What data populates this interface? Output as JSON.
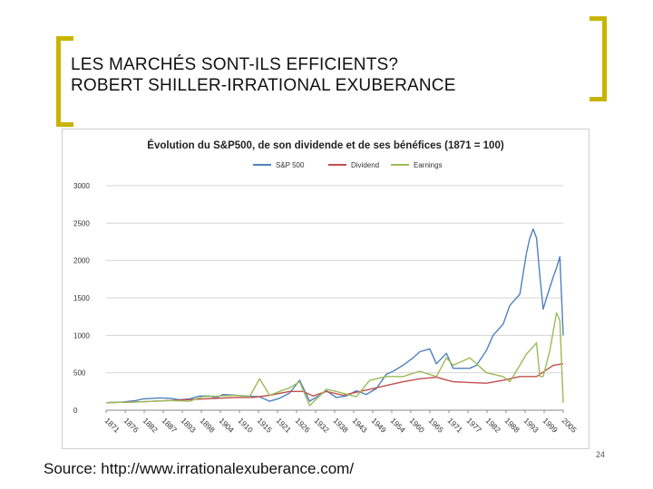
{
  "slide": {
    "title_line1": "LES MARCHÉS SONT-ILS EFFICIENTS?",
    "title_line2": "ROBERT SHILLER-IRRATIONAL EXUBERANCE",
    "source": "Source: http://www.irrationalexuberance.com/",
    "page_number": "24"
  },
  "colors": {
    "accent_bracket": "#c8b400",
    "sp500": "#4f81bd",
    "dividend": "#c0504d",
    "earnings": "#9bbb59"
  },
  "chart_data": {
    "type": "line",
    "title": "Évolution du S&P500, de son dividende et de ses bénéfices (1871 = 100)",
    "xlabel": "",
    "ylabel": "",
    "x_range": [
      1871,
      2008
    ],
    "ylim": [
      0,
      3000
    ],
    "yticks": [
      0,
      500,
      1000,
      1500,
      2000,
      2500,
      3000
    ],
    "ytick_labels": [
      "0",
      "500",
      "1000",
      "1500",
      "2000",
      "2500",
      "3000"
    ],
    "xtick_labels": [
      "1871",
      "1876",
      "1882",
      "1887",
      "1893",
      "1898",
      "1904",
      "1910",
      "1915",
      "1921",
      "1926",
      "1932",
      "1938",
      "1943",
      "1949",
      "1954",
      "1960",
      "1965",
      "1971",
      "1977",
      "1982",
      "1988",
      "1993",
      "1999",
      "2005"
    ],
    "grid": true,
    "legend": "top-center",
    "series": [
      {
        "name": "S&P 500",
        "color": "#4f81bd",
        "x": [
          1871,
          1876,
          1880,
          1882,
          1887,
          1890,
          1893,
          1896,
          1899,
          1902,
          1904,
          1906,
          1910,
          1913,
          1917,
          1920,
          1923,
          1926,
          1929,
          1932,
          1935,
          1937,
          1940,
          1943,
          1946,
          1949,
          1952,
          1955,
          1957,
          1960,
          1963,
          1965,
          1968,
          1970,
          1973,
          1975,
          1978,
          1980,
          1982,
          1985,
          1987,
          1990,
          1992,
          1995,
          1997,
          1998,
          1999,
          2000,
          2001,
          2002,
          2003,
          2005,
          2006,
          2007,
          2008
        ],
        "y": [
          100,
          110,
          130,
          150,
          165,
          160,
          140,
          150,
          190,
          190,
          165,
          210,
          200,
          190,
          180,
          120,
          160,
          230,
          400,
          120,
          200,
          260,
          170,
          190,
          260,
          210,
          290,
          480,
          520,
          600,
          700,
          780,
          820,
          620,
          760,
          560,
          560,
          560,
          600,
          800,
          1000,
          1150,
          1400,
          1550,
          2100,
          2300,
          2420,
          2300,
          1800,
          1350,
          1500,
          1780,
          1900,
          2050,
          1000
        ]
      },
      {
        "name": "Dividend",
        "color": "#c0504d",
        "x": [
          1871,
          1880,
          1890,
          1900,
          1910,
          1915,
          1920,
          1926,
          1930,
          1933,
          1937,
          1942,
          1946,
          1950,
          1955,
          1960,
          1965,
          1970,
          1975,
          1980,
          1985,
          1990,
          1995,
          2000,
          2005,
          2008
        ],
        "y": [
          100,
          110,
          130,
          150,
          170,
          170,
          200,
          250,
          250,
          190,
          250,
          200,
          240,
          280,
          330,
          380,
          420,
          440,
          380,
          370,
          360,
          400,
          450,
          450,
          600,
          620
        ]
      },
      {
        "name": "Earnings",
        "color": "#9bbb59",
        "x": [
          1871,
          1880,
          1890,
          1896,
          1900,
          1905,
          1910,
          1914,
          1917,
          1920,
          1923,
          1926,
          1929,
          1932,
          1937,
          1940,
          1946,
          1950,
          1955,
          1960,
          1965,
          1970,
          1973,
          1975,
          1980,
          1985,
          1990,
          1992,
          1995,
          1997,
          2000,
          2001,
          2002,
          2004,
          2006,
          2007,
          2008
        ],
        "y": [
          100,
          110,
          130,
          120,
          180,
          190,
          200,
          180,
          420,
          200,
          250,
          300,
          380,
          60,
          280,
          250,
          180,
          400,
          450,
          450,
          520,
          450,
          700,
          600,
          700,
          500,
          450,
          380,
          600,
          750,
          900,
          450,
          450,
          800,
          1300,
          1200,
          100
        ]
      }
    ]
  }
}
